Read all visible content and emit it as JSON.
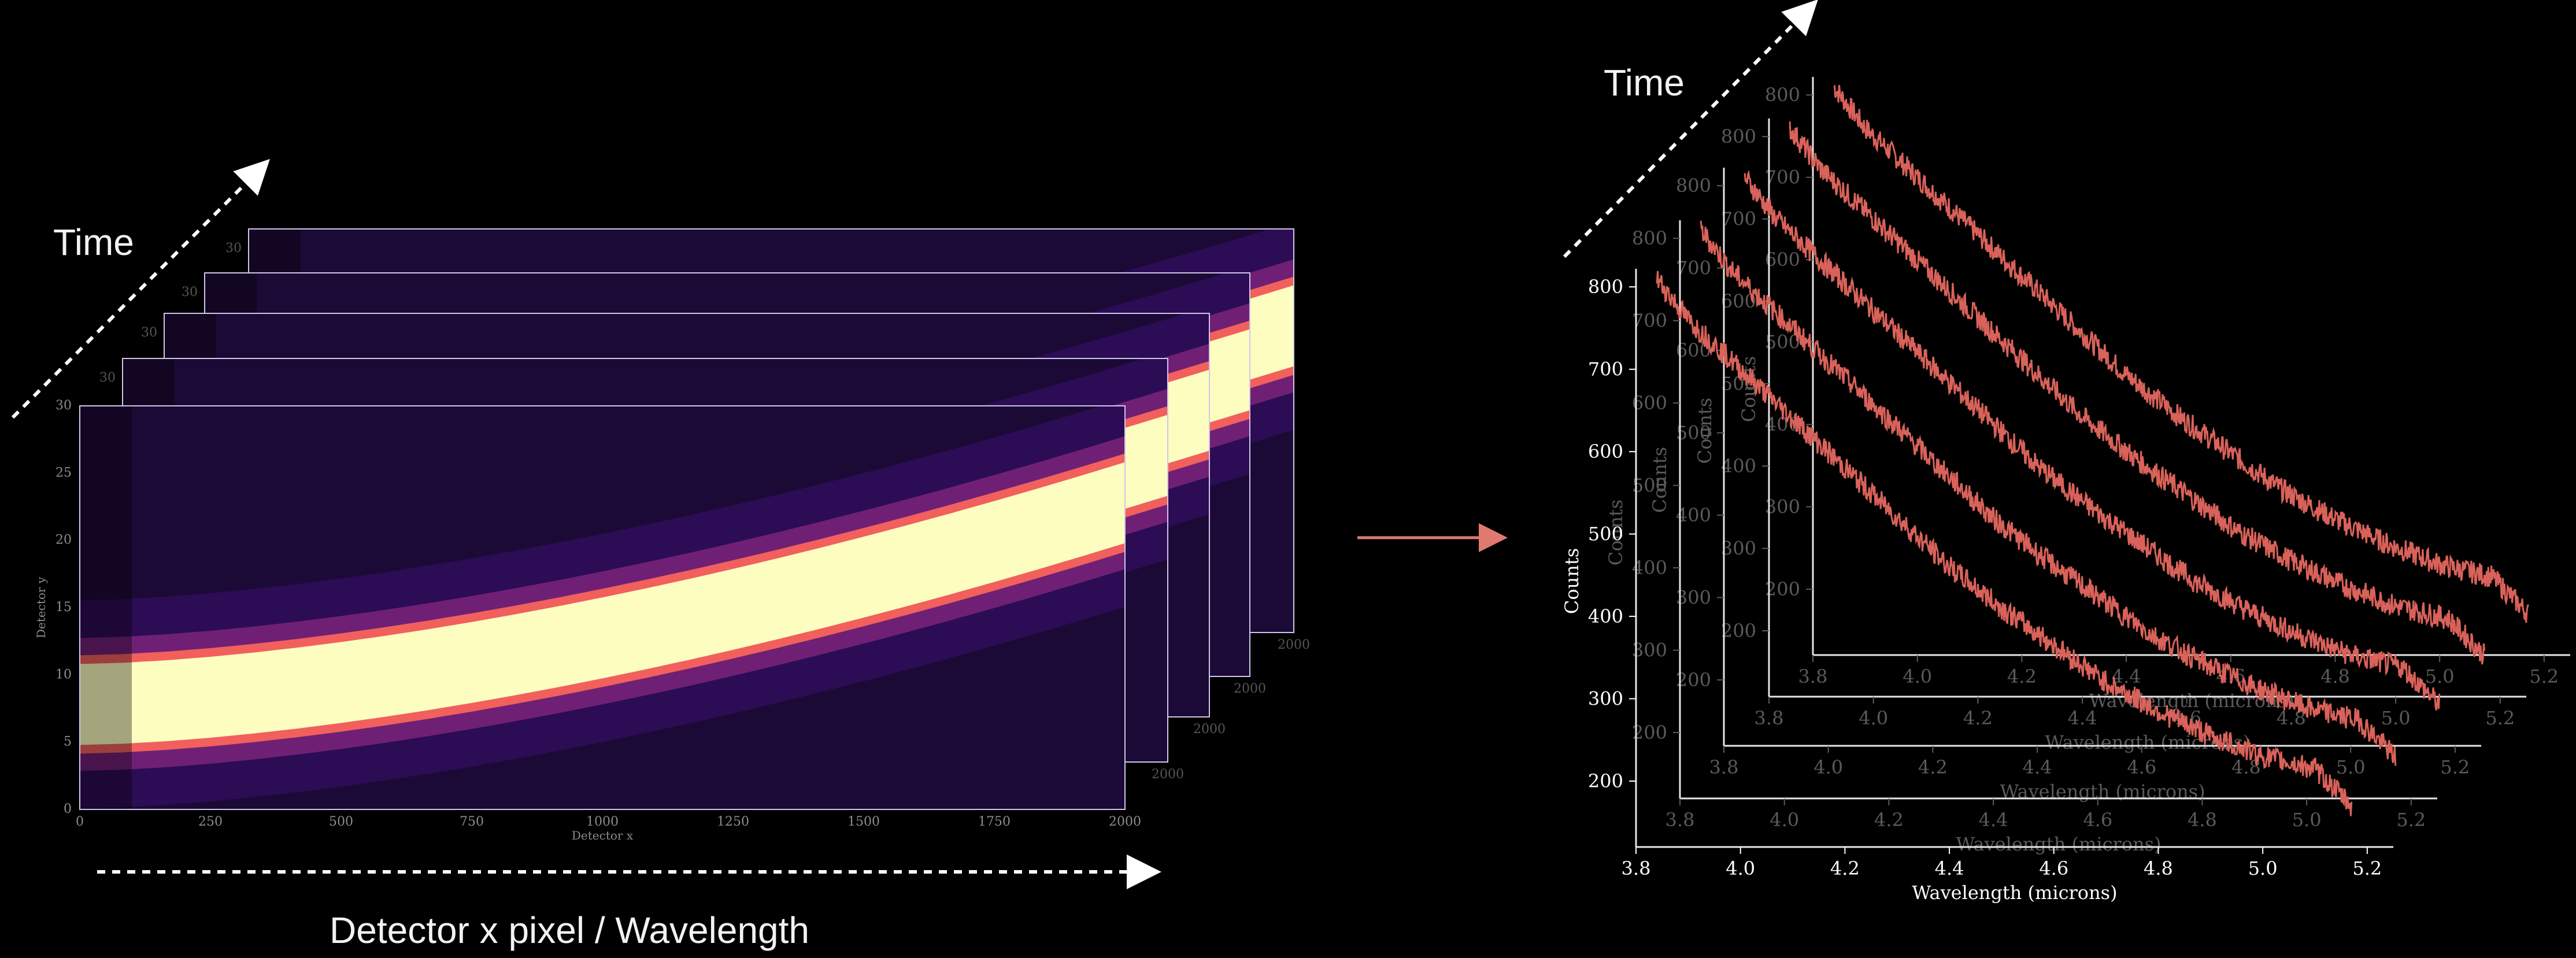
{
  "left_panel": {
    "time_label": "Time",
    "x_caption": "Detector x pixel / Wavelength",
    "frame_count": 5,
    "image_x_axis_label": "Detector x",
    "image_y_axis_label": "Detector y",
    "image_x_ticks": [
      0,
      250,
      500,
      750,
      1000,
      1250,
      1500,
      1750,
      2000
    ],
    "image_y_ticks": [
      0,
      5,
      10,
      15,
      20,
      25,
      30
    ],
    "colormap": "inferno",
    "background_color": "#000000"
  },
  "transition_arrow": {
    "color": "#e07a70"
  },
  "right_panel": {
    "time_label": "Time"
  },
  "chart_data": {
    "type": "line",
    "series_color": "#d9625a",
    "xlabel": "Wavelength (microns)",
    "ylabel": "Counts",
    "xlim": [
      3.8,
      5.25
    ],
    "ylim": [
      120,
      850
    ],
    "x_ticks": [
      3.8,
      4.0,
      4.2,
      4.4,
      4.6,
      4.8,
      5.0,
      5.2
    ],
    "y_ticks": [
      200,
      300,
      400,
      500,
      600,
      700,
      800
    ],
    "stack_count": 5,
    "spectrum_samples": {
      "x": [
        3.84,
        3.9,
        4.0,
        4.1,
        4.2,
        4.3,
        4.4,
        4.5,
        4.6,
        4.7,
        4.8,
        4.9,
        5.0,
        5.1,
        5.17
      ],
      "y": [
        810,
        760,
        700,
        640,
        580,
        520,
        460,
        410,
        365,
        320,
        285,
        255,
        230,
        215,
        170
      ]
    }
  }
}
